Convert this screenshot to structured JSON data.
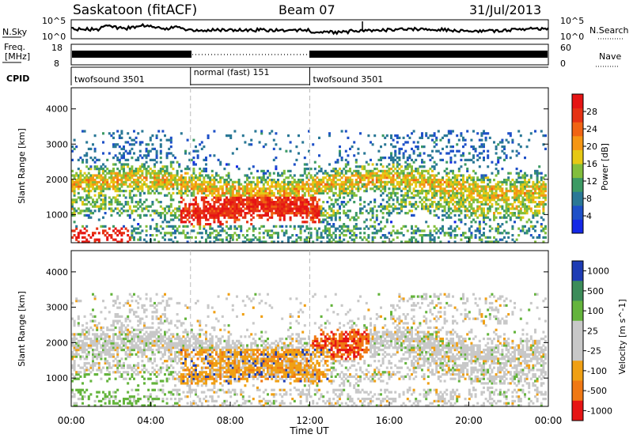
{
  "header": {
    "title": "Saskatoon (fitACF)",
    "beam": "Beam 07",
    "date": "31/Jul/2013"
  },
  "panels": {
    "noise": {
      "left_label": "N.Sky",
      "left_ticks": [
        "10^5",
        "10^0"
      ],
      "right_label": "N.Search",
      "right_ticks": [
        "10^5",
        "10^0"
      ]
    },
    "freq": {
      "left_label_1": "Freq.",
      "left_label_2": "[MHz]",
      "left_ticks": [
        "18",
        "8"
      ],
      "right_label": "Nave",
      "right_ticks": [
        "60",
        "0"
      ]
    },
    "cpid": {
      "label": "CPID",
      "segments": [
        {
          "name": "twofsound 3501",
          "start_h": 0,
          "end_h": 6
        },
        {
          "name": "normal (fast) 151",
          "start_h": 6,
          "end_h": 12
        },
        {
          "name": "twofsound 3501",
          "start_h": 12,
          "end_h": 24
        }
      ]
    }
  },
  "chart_data": [
    {
      "type": "heatmap",
      "title": "",
      "xlabel": "",
      "ylabel": "Slant Range [km]",
      "xlim": [
        "00:00",
        "24:00"
      ],
      "ylim": [
        200,
        4600
      ],
      "yticks": [
        1000,
        2000,
        3000,
        4000
      ],
      "colorbar": {
        "label": "Power [dB]",
        "ticks": [
          4,
          8,
          12,
          16,
          20,
          24,
          28
        ],
        "range": [
          0,
          32
        ],
        "colors": [
          "#1428e6",
          "#1e50c8",
          "#2a7896",
          "#3c9a64",
          "#82be3c",
          "#e6c814",
          "#f59614",
          "#f06414",
          "#e63214",
          "#e61414"
        ]
      }
    },
    {
      "type": "heatmap",
      "title": "",
      "xlabel": "Time UT",
      "ylabel": "Slant Range [km]",
      "xlim": [
        "00:00",
        "24:00"
      ],
      "ylim": [
        200,
        4600
      ],
      "yticks": [
        1000,
        2000,
        3000,
        4000
      ],
      "xticks": [
        "00:00",
        "04:00",
        "08:00",
        "12:00",
        "16:00",
        "20:00",
        "00:00"
      ],
      "colorbar": {
        "label": "Velocity [m s^-1]",
        "ticks": [
          "1000",
          "500",
          "100",
          "25",
          "-25",
          "-100",
          "-500",
          "-1000"
        ],
        "colors": [
          "#1e3cb4",
          "#3c8c5a",
          "#64b43c",
          "#c8c8c8",
          "#c8c8c8",
          "#f0a014",
          "#f07814",
          "#e61414"
        ]
      }
    }
  ]
}
